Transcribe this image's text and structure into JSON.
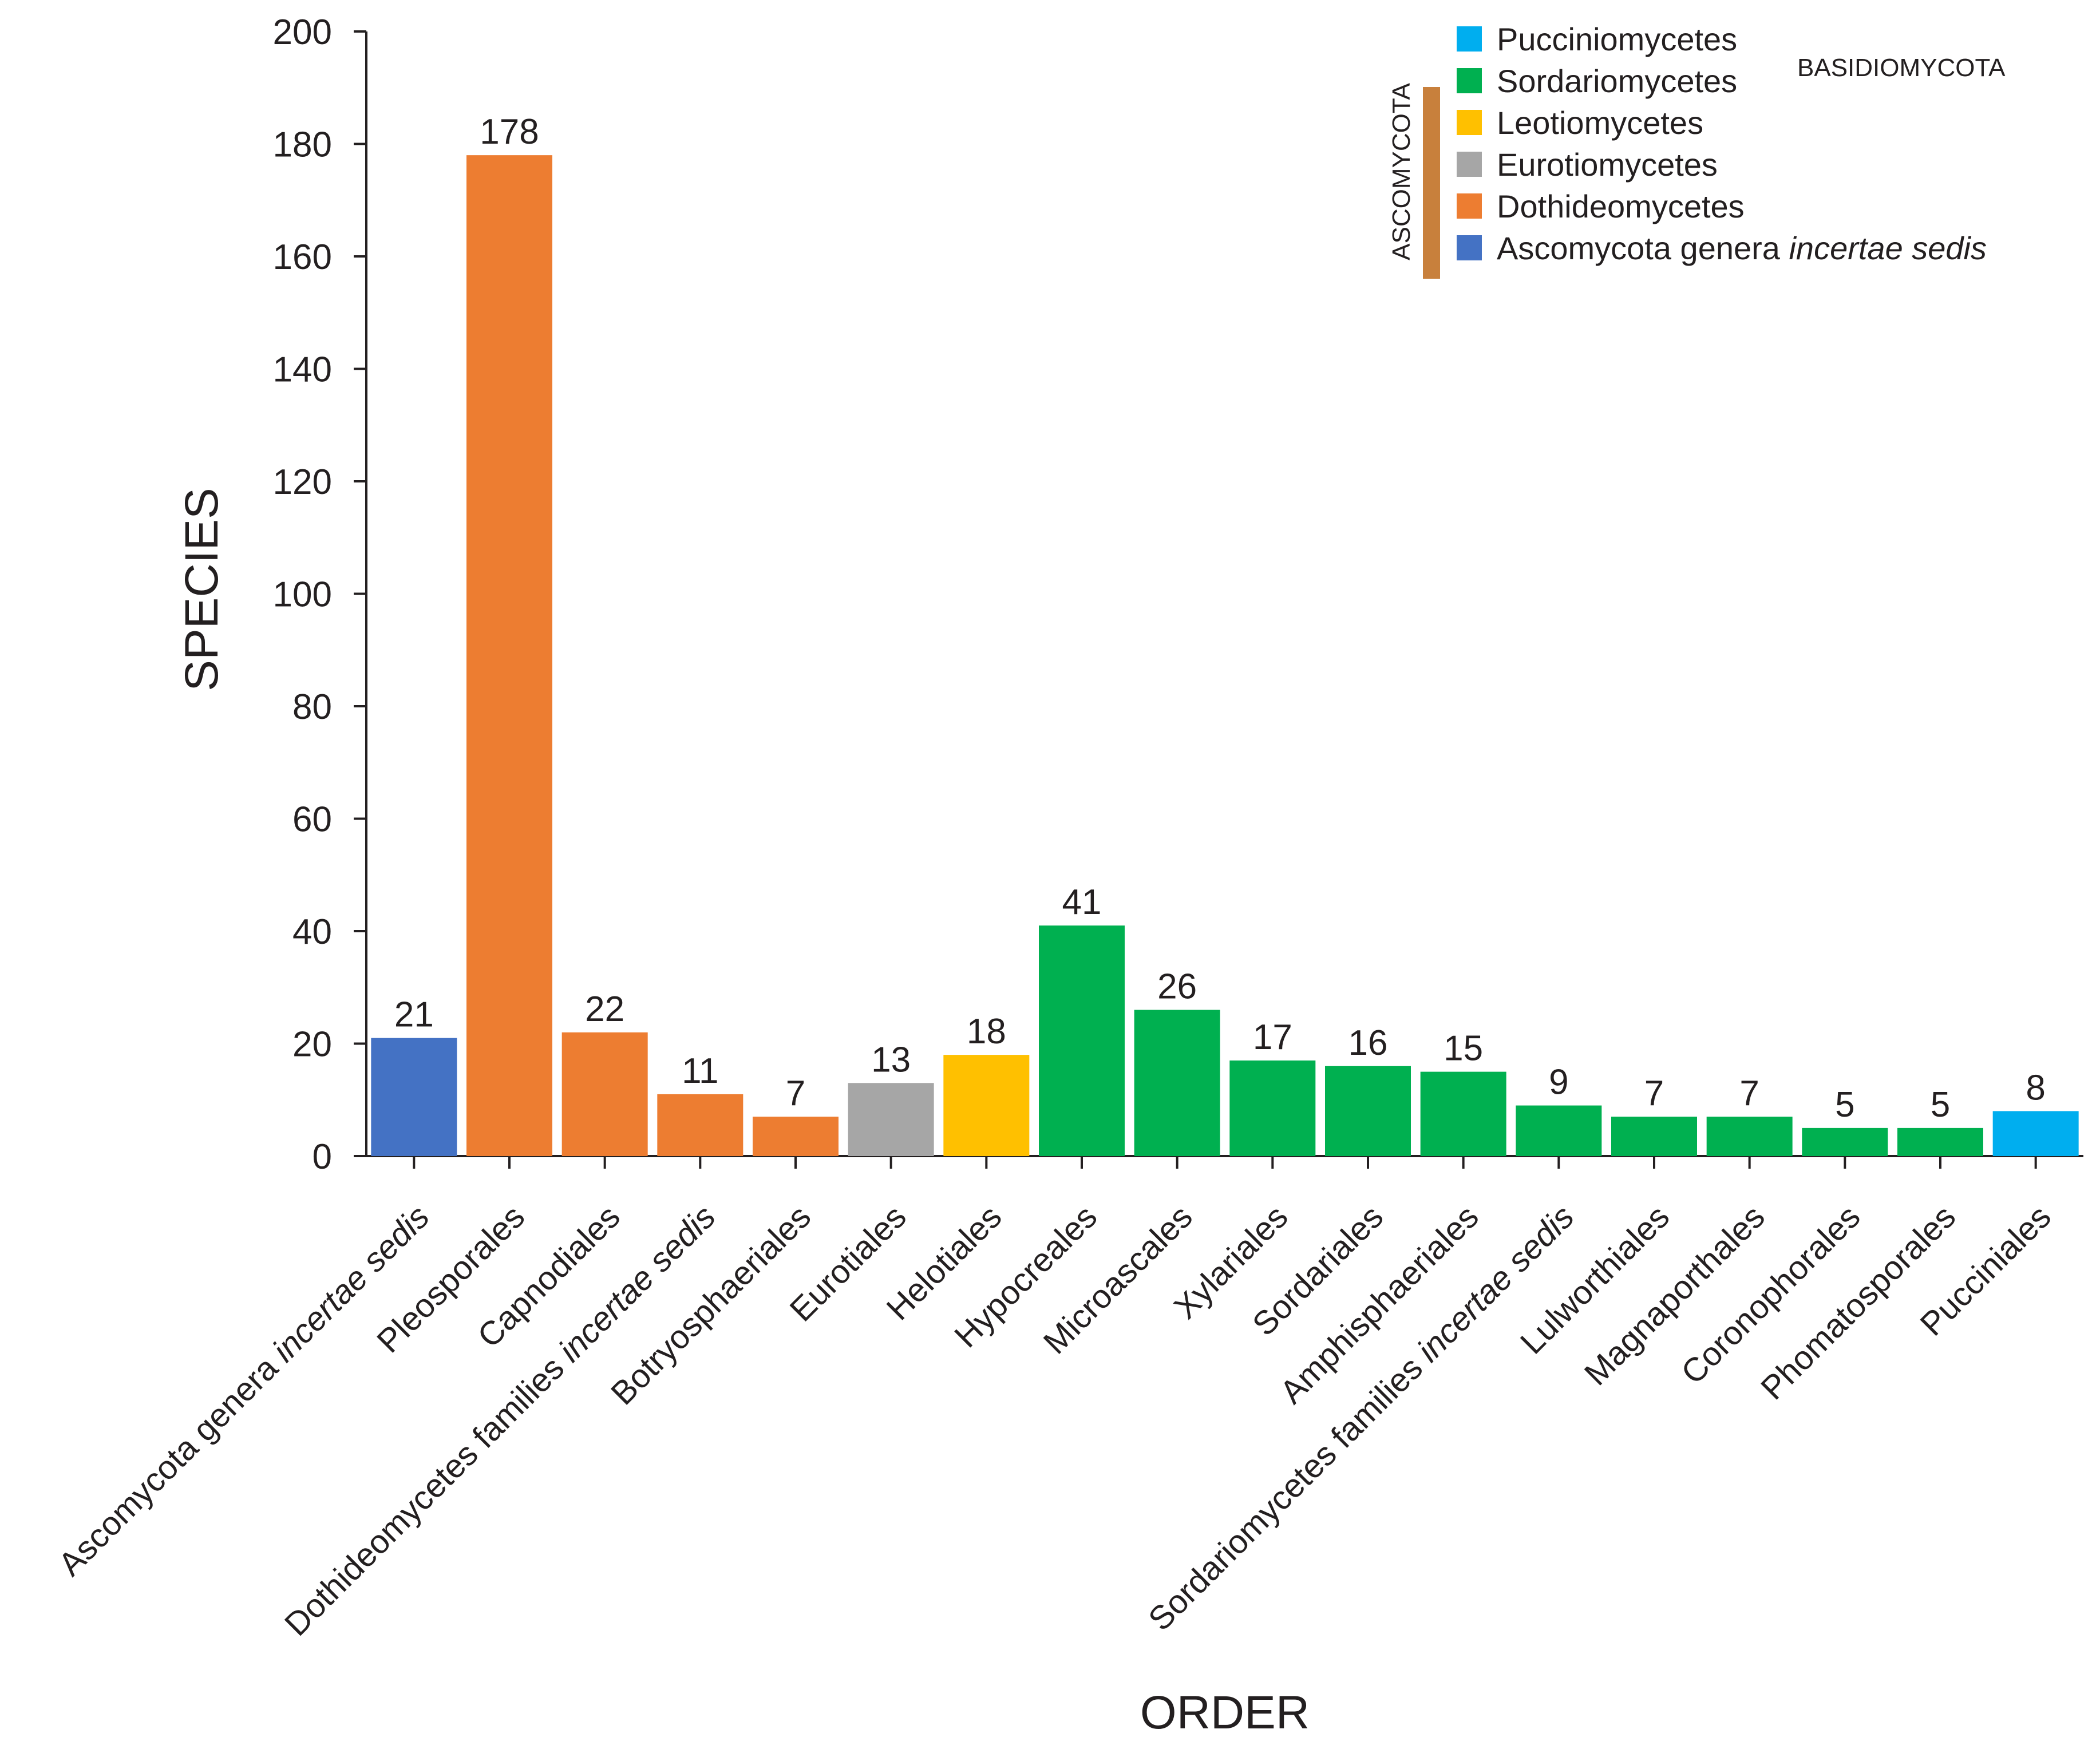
{
  "chart_data": {
    "type": "bar",
    "xlabel": "ORDER",
    "ylabel": "SPECIES",
    "ylim": [
      0,
      200
    ],
    "yticks": [
      0,
      20,
      40,
      60,
      80,
      100,
      120,
      140,
      160,
      180,
      200
    ],
    "grid": false,
    "categories": [
      {
        "label": "Ascomycota genera",
        "label_italic": "incertae sedis",
        "value": 21,
        "group": "Ascomycota genera incertae sedis"
      },
      {
        "label": "Pleosporales",
        "label_italic": "",
        "value": 178,
        "group": "Dothideomycetes"
      },
      {
        "label": "Capnodiales",
        "label_italic": "",
        "value": 22,
        "group": "Dothideomycetes"
      },
      {
        "label": "Dothideomycetes families",
        "label_italic": "incertae sedis",
        "value": 11,
        "group": "Dothideomycetes"
      },
      {
        "label": "Botryosphaeriales",
        "label_italic": "",
        "value": 7,
        "group": "Dothideomycetes"
      },
      {
        "label": "Eurotiales",
        "label_italic": "",
        "value": 13,
        "group": "Eurotiomycetes"
      },
      {
        "label": "Helotiales",
        "label_italic": "",
        "value": 18,
        "group": "Leotiomycetes"
      },
      {
        "label": "Hypocreales",
        "label_italic": "",
        "value": 41,
        "group": "Sordariomycetes"
      },
      {
        "label": "Microascales",
        "label_italic": "",
        "value": 26,
        "group": "Sordariomycetes"
      },
      {
        "label": "Xylariales",
        "label_italic": "",
        "value": 17,
        "group": "Sordariomycetes"
      },
      {
        "label": "Sordariales",
        "label_italic": "",
        "value": 16,
        "group": "Sordariomycetes"
      },
      {
        "label": "Amphisphaeriales",
        "label_italic": "",
        "value": 15,
        "group": "Sordariomycetes"
      },
      {
        "label": "Sordariomycetes families",
        "label_italic": "incertae sedis",
        "value": 9,
        "group": "Sordariomycetes"
      },
      {
        "label": "Lulworthiales",
        "label_italic": "",
        "value": 7,
        "group": "Sordariomycetes"
      },
      {
        "label": "Magnaporthales",
        "label_italic": "",
        "value": 7,
        "group": "Sordariomycetes"
      },
      {
        "label": "Coronophorales",
        "label_italic": "",
        "value": 5,
        "group": "Sordariomycetes"
      },
      {
        "label": "Phomatosporales",
        "label_italic": "",
        "value": 5,
        "group": "Sordariomycetes"
      },
      {
        "label": "Pucciniales",
        "label_italic": "",
        "value": 8,
        "group": "Pucciniomycetes"
      }
    ],
    "legend": {
      "placement": "top-right",
      "entries": [
        {
          "name": "Pucciniomycetes",
          "italic": "",
          "color": "#00aeef"
        },
        {
          "name": "Sordariomycetes",
          "italic": "",
          "color": "#00b050"
        },
        {
          "name": "Leotiomycetes",
          "italic": "",
          "color": "#ffc000"
        },
        {
          "name": "Eurotiomycetes",
          "italic": "",
          "color": "#a6a6a6"
        },
        {
          "name": "Dothideomycetes",
          "italic": "",
          "color": "#ed7d31"
        },
        {
          "name": "Ascomycota genera",
          "italic": "incertae sedis",
          "color": "#4472c4"
        }
      ],
      "phylum_basidio": {
        "label": "BASIDIOMYCOTA",
        "color": "#31a0c6"
      },
      "phylum_asco": {
        "label": "ASCOMYCOTA",
        "color": "#31a0c6",
        "bar_color": "#c8803c"
      }
    }
  }
}
